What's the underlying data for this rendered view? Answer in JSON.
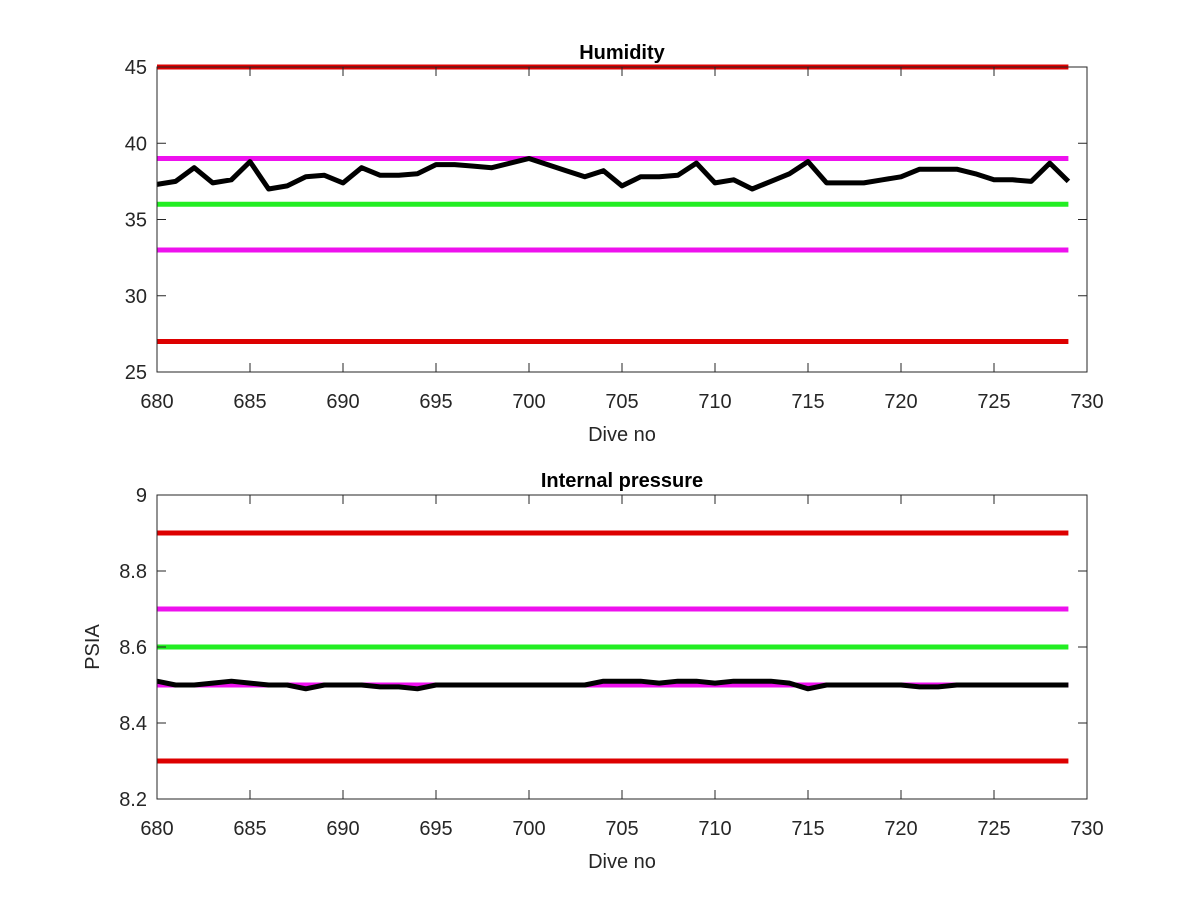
{
  "chart_data": [
    {
      "type": "line",
      "title": "Humidity",
      "xlabel": "Dive no",
      "ylabel": "",
      "xlim": [
        680,
        730
      ],
      "ylim": [
        25,
        45
      ],
      "xticks": [
        680,
        685,
        690,
        695,
        700,
        705,
        710,
        715,
        720,
        725,
        730
      ],
      "yticks": [
        25,
        30,
        35,
        40,
        45
      ],
      "xtick_labels": [
        "680",
        "685",
        "690",
        "695",
        "700",
        "705",
        "710",
        "715",
        "720",
        "725",
        "730"
      ],
      "ytick_labels": [
        "25",
        "30",
        "35",
        "40",
        "45"
      ],
      "grid": false,
      "reference_lines": [
        {
          "y": 45,
          "color": "#dd0000"
        },
        {
          "y": 39,
          "color": "#ee11ee"
        },
        {
          "y": 36,
          "color": "#22ee22"
        },
        {
          "y": 33,
          "color": "#ee11ee"
        },
        {
          "y": 27,
          "color": "#dd0000"
        }
      ],
      "series": [
        {
          "color": "#000000",
          "x": [
            680,
            681,
            682,
            683,
            684,
            685,
            686,
            687,
            688,
            689,
            690,
            691,
            692,
            693,
            694,
            695,
            696,
            697,
            698,
            699,
            700,
            701,
            702,
            703,
            704,
            705,
            706,
            707,
            708,
            709,
            710,
            711,
            712,
            713,
            714,
            715,
            716,
            717,
            718,
            719,
            720,
            721,
            722,
            723,
            724,
            725,
            726,
            727,
            728,
            729
          ],
          "y": [
            37.3,
            37.5,
            38.4,
            37.4,
            37.6,
            38.8,
            37.0,
            37.2,
            37.8,
            37.9,
            37.4,
            38.4,
            37.9,
            37.9,
            38.0,
            38.6,
            38.6,
            38.5,
            38.4,
            38.7,
            39.0,
            38.6,
            38.2,
            37.8,
            38.2,
            37.2,
            37.8,
            37.8,
            37.9,
            38.7,
            37.4,
            37.6,
            37.0,
            37.5,
            38.0,
            38.8,
            37.4,
            37.4,
            37.4,
            37.6,
            37.8,
            38.3,
            38.3,
            38.3,
            38.0,
            37.6,
            37.6,
            37.5,
            38.7,
            37.5
          ]
        }
      ]
    },
    {
      "type": "line",
      "title": "Internal pressure",
      "xlabel": "Dive no",
      "ylabel": "PSIA",
      "xlim": [
        680,
        730
      ],
      "ylim": [
        8.2,
        9
      ],
      "xticks": [
        680,
        685,
        690,
        695,
        700,
        705,
        710,
        715,
        720,
        725,
        730
      ],
      "yticks": [
        8.2,
        8.4,
        8.6,
        8.8,
        9
      ],
      "xtick_labels": [
        "680",
        "685",
        "690",
        "695",
        "700",
        "705",
        "710",
        "715",
        "720",
        "725",
        "730"
      ],
      "ytick_labels": [
        "8.2",
        "8.4",
        "8.6",
        "8.8",
        "9"
      ],
      "grid": false,
      "reference_lines": [
        {
          "y": 8.9,
          "color": "#dd0000"
        },
        {
          "y": 8.7,
          "color": "#ee11ee"
        },
        {
          "y": 8.6,
          "color": "#22ee22"
        },
        {
          "y": 8.5,
          "color": "#ee11ee"
        },
        {
          "y": 8.3,
          "color": "#dd0000"
        }
      ],
      "series": [
        {
          "color": "#000000",
          "x": [
            680,
            681,
            682,
            683,
            684,
            685,
            686,
            687,
            688,
            689,
            690,
            691,
            692,
            693,
            694,
            695,
            696,
            697,
            698,
            699,
            700,
            701,
            702,
            703,
            704,
            705,
            706,
            707,
            708,
            709,
            710,
            711,
            712,
            713,
            714,
            715,
            716,
            717,
            718,
            719,
            720,
            721,
            722,
            723,
            724,
            725,
            726,
            727,
            728,
            729
          ],
          "y": [
            8.51,
            8.5,
            8.5,
            8.505,
            8.51,
            8.505,
            8.5,
            8.5,
            8.49,
            8.5,
            8.5,
            8.5,
            8.495,
            8.495,
            8.49,
            8.5,
            8.5,
            8.5,
            8.5,
            8.5,
            8.5,
            8.5,
            8.5,
            8.5,
            8.51,
            8.51,
            8.51,
            8.505,
            8.51,
            8.51,
            8.505,
            8.51,
            8.51,
            8.51,
            8.505,
            8.49,
            8.5,
            8.5,
            8.5,
            8.5,
            8.5,
            8.495,
            8.495,
            8.5,
            8.5,
            8.5,
            8.5,
            8.5,
            8.5,
            8.5
          ]
        }
      ]
    }
  ]
}
